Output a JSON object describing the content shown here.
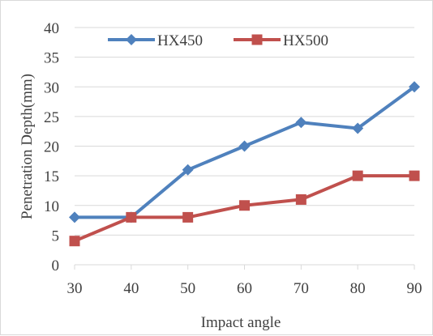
{
  "chart_data": {
    "type": "line",
    "x": [
      30,
      40,
      50,
      60,
      70,
      80,
      90
    ],
    "series": [
      {
        "name": "HX450",
        "values": [
          8,
          8,
          16,
          20,
          24,
          23,
          30
        ],
        "color": "#4f81bd",
        "marker": "diamond"
      },
      {
        "name": "HX500",
        "values": [
          4,
          8,
          8,
          10,
          11,
          15,
          15
        ],
        "color": "#c0504d",
        "marker": "square"
      }
    ],
    "title": "",
    "xlabel": "Impact angle",
    "ylabel": "Penetration Depth(mm)",
    "xlim": [
      30,
      90
    ],
    "ylim": [
      0,
      40
    ],
    "xticks": [
      30,
      40,
      50,
      60,
      70,
      80,
      90
    ],
    "yticks": [
      0,
      5,
      10,
      15,
      20,
      25,
      30,
      35,
      40
    ],
    "grid": "horizontal",
    "gridline_color": "#d9d9d9",
    "legend_position": "top"
  }
}
